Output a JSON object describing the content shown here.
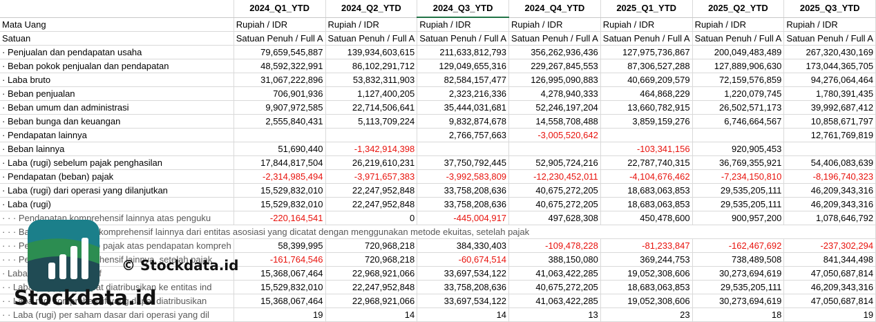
{
  "columns": [
    "2024_Q1_YTD",
    "2024_Q2_YTD",
    "2024_Q3_YTD",
    "2024_Q4_YTD",
    "2025_Q1_YTD",
    "2025_Q2_YTD",
    "2025_Q3_YTD"
  ],
  "active_column": 2,
  "meta_rows": [
    {
      "label": "Mata Uang",
      "values": [
        "Rupiah / IDR",
        "Rupiah / IDR",
        "Rupiah / IDR",
        "Rupiah / IDR",
        "Rupiah / IDR",
        "Rupiah / IDR",
        "Rupiah / IDR"
      ]
    },
    {
      "label": "Satuan",
      "values": [
        "Satuan Penuh / Full A",
        "Satuan Penuh / Full A",
        "Satuan Penuh / Full A",
        "Satuan Penuh / Full A",
        "Satuan Penuh / Full A",
        "Satuan Penuh / Full A",
        "Satuan Penuh / Full A"
      ]
    }
  ],
  "rows": [
    {
      "label": "· Penjualan dan pendapatan usaha",
      "values": [
        "79,659,545,887",
        "139,934,603,615",
        "211,633,812,793",
        "356,262,936,436",
        "127,975,736,867",
        "200,049,483,489",
        "267,320,430,169"
      ]
    },
    {
      "label": "· Beban pokok penjualan dan pendapatan",
      "values": [
        "48,592,322,991",
        "86,102,291,712",
        "129,049,655,316",
        "229,267,845,553",
        "87,306,527,288",
        "127,889,906,630",
        "173,044,365,705"
      ]
    },
    {
      "label": "· Laba bruto",
      "values": [
        "31,067,222,896",
        "53,832,311,903",
        "82,584,157,477",
        "126,995,090,883",
        "40,669,209,579",
        "72,159,576,859",
        "94,276,064,464"
      ]
    },
    {
      "label": "· Beban penjualan",
      "values": [
        "706,901,936",
        "1,127,400,205",
        "2,323,216,336",
        "4,278,940,333",
        "464,868,229",
        "1,220,079,745",
        "1,780,391,435"
      ]
    },
    {
      "label": "· Beban umum dan administrasi",
      "values": [
        "9,907,972,585",
        "22,714,506,641",
        "35,444,031,681",
        "52,246,197,204",
        "13,660,782,915",
        "26,502,571,173",
        "39,992,687,412"
      ]
    },
    {
      "label": "· Beban bunga dan keuangan",
      "values": [
        "2,555,840,431",
        "5,113,709,224",
        "9,832,874,678",
        "14,558,708,488",
        "3,859,159,276",
        "6,746,664,567",
        "10,858,671,797"
      ]
    },
    {
      "label": "· Pendapatan lainnya",
      "values": [
        "",
        "",
        "2,766,757,663",
        "-3,005,520,642",
        "",
        "",
        "12,761,769,819"
      ]
    },
    {
      "label": "· Beban lainnya",
      "values": [
        "51,690,440",
        "-1,342,914,398",
        "",
        "",
        "-103,341,156",
        "920,905,453",
        ""
      ]
    },
    {
      "label": "· Laba (rugi) sebelum pajak penghasilan",
      "values": [
        "17,844,817,504",
        "26,219,610,231",
        "37,750,792,445",
        "52,905,724,216",
        "22,787,740,315",
        "36,769,355,921",
        "54,406,083,639"
      ]
    },
    {
      "label": "· Pendapatan (beban) pajak",
      "values": [
        "-2,314,985,494",
        "-3,971,657,383",
        "-3,992,583,809",
        "-12,230,452,011",
        "-4,104,676,462",
        "-7,234,150,810",
        "-8,196,740,323"
      ]
    },
    {
      "label": "· Laba (rugi) dari operasi yang dilanjutkan",
      "values": [
        "15,529,832,010",
        "22,247,952,848",
        "33,758,208,636",
        "40,675,272,205",
        "18,683,063,853",
        "29,535,205,111",
        "46,209,343,316"
      ]
    },
    {
      "label": "· Laba (rugi)",
      "values": [
        "15,529,832,010",
        "22,247,952,848",
        "33,758,208,636",
        "40,675,272,205",
        "18,683,063,853",
        "29,535,205,111",
        "46,209,343,316"
      ]
    },
    {
      "label": "· · · Pendapatan komprehensif lainnya atas penguku",
      "muted": true,
      "values": [
        "-220,164,541",
        "0",
        "-445,004,917",
        "497,628,308",
        "450,478,600",
        "900,957,200",
        "1,078,646,792"
      ]
    },
    {
      "label": "· · · Bagian pendapatan komprehensif lainnya dari entitas asosiasi yang dicatat dengan menggunakan metode ekuitas, setelah pajak",
      "muted": true,
      "spanning": true,
      "values": []
    },
    {
      "label": "· · · Pendapatan (beban) pajak atas pendapatan kompreh",
      "muted": true,
      "values": [
        "58,399,995",
        "720,968,218",
        "384,330,403",
        "-109,478,228",
        "-81,233,847",
        "-162,467,692",
        "-237,302,294"
      ]
    },
    {
      "label": "· · · Pendapatan komprehensif lainnya, setelah pajak",
      "muted": true,
      "values": [
        "-161,764,546",
        "720,968,218",
        "-60,674,514",
        "388,150,080",
        "369,244,753",
        "738,489,508",
        "841,344,498"
      ]
    },
    {
      "label": "· Laba rugi komprehensif",
      "muted": true,
      "values": [
        "15,368,067,464",
        "22,968,921,066",
        "33,697,534,122",
        "41,063,422,285",
        "19,052,308,606",
        "30,273,694,619",
        "47,050,687,814"
      ]
    },
    {
      "label": "· · Laba (rugi) yang dapat diatribusikan ke entitas ind",
      "muted": true,
      "values": [
        "15,529,832,010",
        "22,247,952,848",
        "33,758,208,636",
        "40,675,272,205",
        "18,683,063,853",
        "29,535,205,111",
        "46,209,343,316"
      ]
    },
    {
      "label": "· · Laba rugi komprehensif yang dapat diatribusikan",
      "muted": true,
      "values": [
        "15,368,067,464",
        "22,968,921,066",
        "33,697,534,122",
        "41,063,422,285",
        "19,052,308,606",
        "30,273,694,619",
        "47,050,687,814"
      ]
    },
    {
      "label": "· · Laba (rugi) per saham dasar dari operasi yang dil",
      "muted": true,
      "values": [
        "19",
        "14",
        "14",
        "13",
        "23",
        "18",
        "19"
      ]
    }
  ],
  "watermark": {
    "small_text": "© Stockdata.id",
    "big_text": "Stockdata.id",
    "colors": {
      "teal": "#1b7f8a",
      "dark": "#1e3f55",
      "green": "#2f8f4a"
    }
  }
}
